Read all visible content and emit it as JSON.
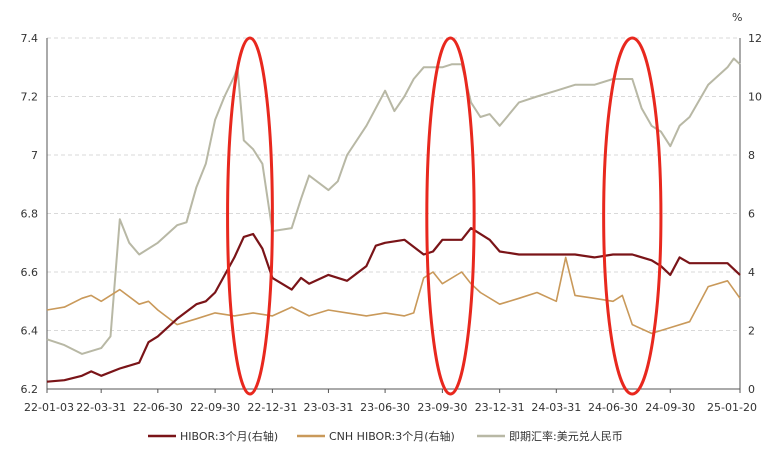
{
  "chart_data": {
    "type": "line",
    "title": "",
    "xlabel": "",
    "ylabel_left": "",
    "ylabel_right": "%",
    "x_ticks": [
      "22-01-03",
      "22-03-31",
      "22-06-30",
      "22-09-30",
      "22-12-31",
      "23-03-31",
      "23-06-30",
      "23-09-30",
      "23-12-31",
      "24-03-31",
      "24-06-30",
      "24-09-30",
      "25-01-20"
    ],
    "y_left": {
      "min": 6.2,
      "max": 7.4,
      "ticks": [
        "6.2",
        "6.4",
        "6.6",
        "6.8",
        "7",
        "7.2",
        "7.4"
      ]
    },
    "y_right": {
      "min": 0,
      "max": 12,
      "ticks": [
        "0",
        "2",
        "4",
        "6",
        "8",
        "10",
        "12"
      ]
    },
    "grid": true,
    "legend_position": "bottom",
    "series": [
      {
        "name": "HIBOR:3个月(右轴)",
        "axis": "right",
        "color": "#7a1418",
        "points": [
          [
            "22-01-03",
            0.25
          ],
          [
            "22-01-31",
            0.3
          ],
          [
            "22-02-28",
            0.45
          ],
          [
            "22-03-15",
            0.6
          ],
          [
            "22-03-31",
            0.45
          ],
          [
            "22-04-30",
            0.7
          ],
          [
            "22-05-31",
            0.9
          ],
          [
            "22-06-15",
            1.6
          ],
          [
            "22-06-30",
            1.8
          ],
          [
            "22-07-31",
            2.4
          ],
          [
            "22-08-31",
            2.9
          ],
          [
            "22-09-15",
            3.0
          ],
          [
            "22-09-30",
            3.3
          ],
          [
            "22-10-31",
            4.5
          ],
          [
            "22-11-15",
            5.2
          ],
          [
            "22-11-30",
            5.3
          ],
          [
            "22-12-15",
            4.8
          ],
          [
            "22-12-31",
            3.8
          ],
          [
            "23-01-31",
            3.4
          ],
          [
            "23-02-15",
            3.8
          ],
          [
            "23-02-28",
            3.6
          ],
          [
            "23-03-31",
            3.9
          ],
          [
            "23-04-30",
            3.7
          ],
          [
            "23-05-31",
            4.2
          ],
          [
            "23-06-15",
            4.9
          ],
          [
            "23-06-30",
            5.0
          ],
          [
            "23-07-31",
            5.1
          ],
          [
            "23-08-31",
            4.6
          ],
          [
            "23-09-15",
            4.7
          ],
          [
            "23-09-30",
            5.1
          ],
          [
            "23-10-31",
            5.1
          ],
          [
            "23-11-15",
            5.5
          ],
          [
            "23-12-15",
            5.1
          ],
          [
            "23-12-31",
            4.7
          ],
          [
            "24-01-31",
            4.6
          ],
          [
            "24-02-29",
            4.6
          ],
          [
            "24-03-31",
            4.6
          ],
          [
            "24-04-30",
            4.6
          ],
          [
            "24-05-31",
            4.5
          ],
          [
            "24-06-30",
            4.6
          ],
          [
            "24-07-31",
            4.6
          ],
          [
            "24-08-31",
            4.4
          ],
          [
            "24-09-15",
            4.2
          ],
          [
            "24-09-30",
            3.9
          ],
          [
            "24-10-15",
            4.5
          ],
          [
            "24-10-31",
            4.3
          ],
          [
            "24-11-30",
            4.3
          ],
          [
            "24-12-31",
            4.3
          ],
          [
            "25-01-20",
            3.9
          ]
        ]
      },
      {
        "name": "CNH HIBOR:3个月(右轴)",
        "axis": "right",
        "color": "#c9995a",
        "points": [
          [
            "22-01-03",
            2.7
          ],
          [
            "22-01-31",
            2.8
          ],
          [
            "22-02-28",
            3.1
          ],
          [
            "22-03-15",
            3.2
          ],
          [
            "22-03-31",
            3.0
          ],
          [
            "22-04-30",
            3.4
          ],
          [
            "22-05-31",
            2.9
          ],
          [
            "22-06-15",
            3.0
          ],
          [
            "22-06-30",
            2.7
          ],
          [
            "22-07-31",
            2.2
          ],
          [
            "22-08-31",
            2.4
          ],
          [
            "22-09-30",
            2.6
          ],
          [
            "22-10-31",
            2.5
          ],
          [
            "22-11-30",
            2.6
          ],
          [
            "22-12-31",
            2.5
          ],
          [
            "23-01-31",
            2.8
          ],
          [
            "23-02-28",
            2.5
          ],
          [
            "23-03-31",
            2.7
          ],
          [
            "23-04-30",
            2.6
          ],
          [
            "23-05-31",
            2.5
          ],
          [
            "23-06-30",
            2.6
          ],
          [
            "23-07-31",
            2.5
          ],
          [
            "23-08-15",
            2.6
          ],
          [
            "23-08-31",
            3.8
          ],
          [
            "23-09-15",
            4.0
          ],
          [
            "23-09-30",
            3.6
          ],
          [
            "23-10-31",
            4.0
          ],
          [
            "23-11-15",
            3.6
          ],
          [
            "23-11-30",
            3.3
          ],
          [
            "23-12-31",
            2.9
          ],
          [
            "24-01-31",
            3.1
          ],
          [
            "24-02-29",
            3.3
          ],
          [
            "24-03-31",
            3.0
          ],
          [
            "24-04-15",
            4.5
          ],
          [
            "24-04-30",
            3.2
          ],
          [
            "24-05-31",
            3.1
          ],
          [
            "24-06-30",
            3.0
          ],
          [
            "24-07-15",
            3.2
          ],
          [
            "24-07-31",
            2.2
          ],
          [
            "24-08-31",
            1.9
          ],
          [
            "24-09-30",
            2.1
          ],
          [
            "24-10-31",
            2.3
          ],
          [
            "24-11-30",
            3.5
          ],
          [
            "24-12-31",
            3.7
          ],
          [
            "25-01-20",
            3.1
          ]
        ]
      },
      {
        "name": "即期汇率:美元兑人民币",
        "axis": "left",
        "color": "#b8b8a5",
        "points": [
          [
            "22-01-03",
            6.37
          ],
          [
            "22-01-31",
            6.35
          ],
          [
            "22-02-28",
            6.32
          ],
          [
            "22-03-31",
            6.34
          ],
          [
            "22-04-15",
            6.38
          ],
          [
            "22-04-30",
            6.78
          ],
          [
            "22-05-15",
            6.7
          ],
          [
            "22-05-31",
            6.66
          ],
          [
            "22-06-30",
            6.7
          ],
          [
            "22-07-31",
            6.76
          ],
          [
            "22-08-15",
            6.77
          ],
          [
            "22-08-31",
            6.89
          ],
          [
            "22-09-15",
            6.97
          ],
          [
            "22-09-30",
            7.12
          ],
          [
            "22-10-15",
            7.2
          ],
          [
            "22-10-31",
            7.27
          ],
          [
            "22-11-05",
            7.3
          ],
          [
            "22-11-15",
            7.05
          ],
          [
            "22-11-30",
            7.02
          ],
          [
            "22-12-15",
            6.97
          ],
          [
            "22-12-31",
            6.74
          ],
          [
            "23-01-31",
            6.75
          ],
          [
            "23-02-15",
            6.85
          ],
          [
            "23-02-28",
            6.93
          ],
          [
            "23-03-31",
            6.88
          ],
          [
            "23-04-15",
            6.91
          ],
          [
            "23-04-30",
            7.0
          ],
          [
            "23-05-31",
            7.1
          ],
          [
            "23-06-15",
            7.16
          ],
          [
            "23-06-30",
            7.22
          ],
          [
            "23-07-15",
            7.15
          ],
          [
            "23-07-31",
            7.2
          ],
          [
            "23-08-15",
            7.26
          ],
          [
            "23-08-31",
            7.3
          ],
          [
            "23-09-15",
            7.3
          ],
          [
            "23-09-30",
            7.3
          ],
          [
            "23-10-15",
            7.31
          ],
          [
            "23-10-31",
            7.31
          ],
          [
            "23-11-15",
            7.18
          ],
          [
            "23-11-30",
            7.13
          ],
          [
            "23-12-15",
            7.14
          ],
          [
            "23-12-31",
            7.1
          ],
          [
            "24-01-31",
            7.18
          ],
          [
            "24-02-29",
            7.2
          ],
          [
            "24-03-31",
            7.22
          ],
          [
            "24-04-30",
            7.24
          ],
          [
            "24-05-31",
            7.24
          ],
          [
            "24-06-30",
            7.26
          ],
          [
            "24-07-31",
            7.26
          ],
          [
            "24-08-15",
            7.16
          ],
          [
            "24-08-31",
            7.1
          ],
          [
            "24-09-15",
            7.08
          ],
          [
            "24-09-30",
            7.03
          ],
          [
            "24-10-15",
            7.1
          ],
          [
            "24-10-31",
            7.13
          ],
          [
            "24-11-30",
            7.24
          ],
          [
            "24-12-31",
            7.3
          ],
          [
            "25-01-10",
            7.33
          ],
          [
            "25-01-20",
            7.31
          ]
        ]
      }
    ],
    "annotations": [
      {
        "type": "ellipse",
        "color": "#e8281e",
        "x_from": "22-10-20",
        "x_to": "22-12-31"
      },
      {
        "type": "ellipse",
        "color": "#e8281e",
        "x_from": "23-09-05",
        "x_to": "23-11-20"
      },
      {
        "type": "ellipse",
        "color": "#e8281e",
        "x_from": "24-06-15",
        "x_to": "24-09-15"
      }
    ]
  }
}
